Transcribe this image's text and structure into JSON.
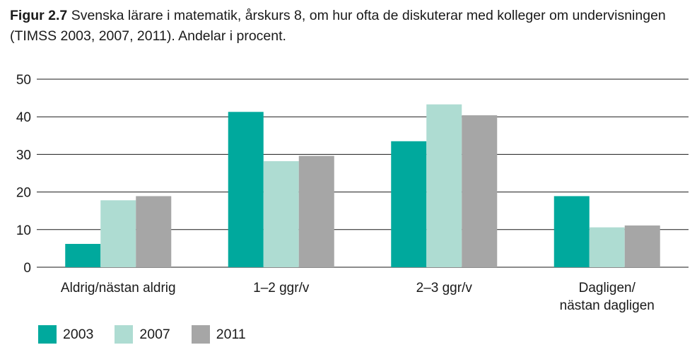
{
  "caption": {
    "label": "Figur 2.7",
    "text": "Svenska lärare i matematik, årskurs 8, om hur ofta de diskuterar med kolleger om undervisningen (TIMSS 2003, 2007, 2011). Andelar i procent."
  },
  "chart_data": {
    "type": "bar",
    "title": "Figur 2.7 Svenska lärare i matematik, årskurs 8, om hur ofta de diskuterar med kolleger om undervisningen (TIMSS 2003, 2007, 2011). Andelar i procent.",
    "categories": [
      [
        "Aldrig/nästan aldrig"
      ],
      [
        "1–2 ggr/v"
      ],
      [
        "2–3 ggr/v"
      ],
      [
        "Dagligen/",
        "nästan dagligen"
      ]
    ],
    "series": [
      {
        "name": "2003",
        "color": "#00a99d",
        "values": [
          6.2,
          41.3,
          33.5,
          18.9
        ]
      },
      {
        "name": "2007",
        "color": "#aedcd2",
        "values": [
          17.8,
          28.2,
          43.3,
          10.6
        ]
      },
      {
        "name": "2011",
        "color": "#a6a6a6",
        "values": [
          18.9,
          29.6,
          40.4,
          11.1
        ]
      }
    ],
    "ylim": [
      0,
      50
    ],
    "yticks": [
      0,
      10,
      20,
      30,
      40,
      50
    ],
    "grid": true,
    "legend_position": "bottom-left"
  }
}
